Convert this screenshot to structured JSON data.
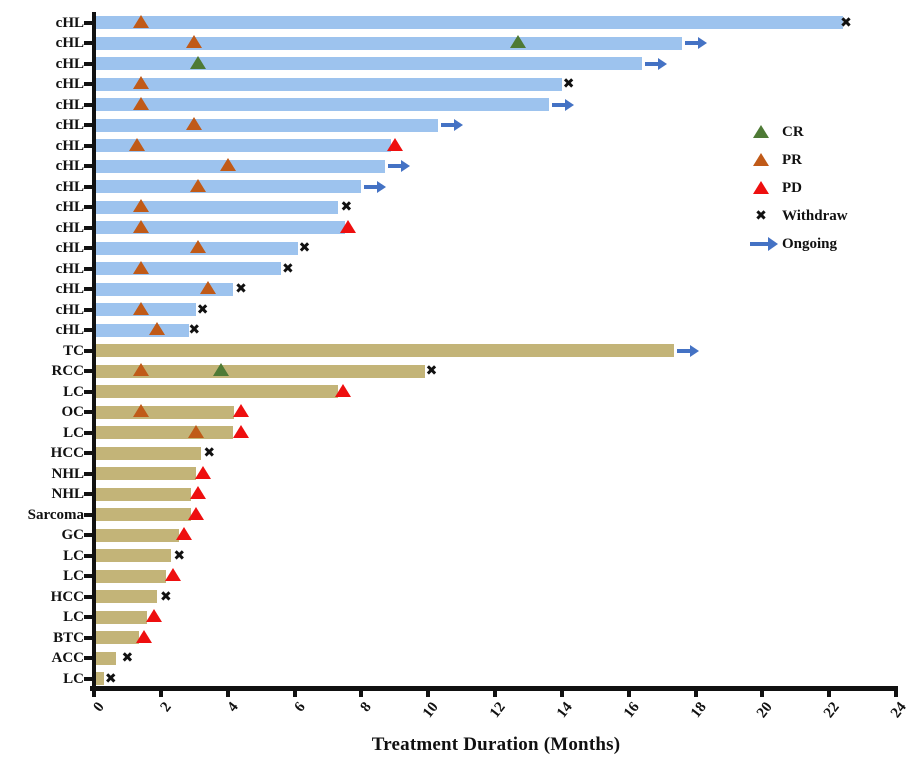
{
  "colors": {
    "chl_bar": "#9dc3ee",
    "other_bar": "#c3b478",
    "cr": "#4e7a35",
    "pr": "#c05a18",
    "pd": "#ee0f0f",
    "withdraw": "#111111",
    "ongoing": "#4472c4",
    "axis": "#111111"
  },
  "chart_data": {
    "type": "bar",
    "subtype": "swimmer-plot",
    "orientation": "horizontal",
    "xlabel": "Treatment Duration (Months)",
    "xlim": [
      0,
      24
    ],
    "xticks": [
      0,
      2,
      4,
      6,
      8,
      10,
      12,
      14,
      16,
      18,
      20,
      22,
      24
    ],
    "grid": false,
    "legend_position": "right-upper",
    "legend": [
      {
        "type": "cr",
        "label": "CR"
      },
      {
        "type": "pr",
        "label": "PR"
      },
      {
        "type": "pd",
        "label": "PD"
      },
      {
        "type": "withdraw",
        "label": "Withdraw"
      },
      {
        "type": "ongoing",
        "label": "Ongoing"
      }
    ],
    "rows": [
      {
        "label": "cHL",
        "group": "cHL",
        "duration": 22.4,
        "ongoing": false,
        "markers": [
          {
            "type": "pr",
            "x": 1.4
          },
          {
            "type": "withdraw",
            "x": 22.5
          }
        ]
      },
      {
        "label": "cHL",
        "group": "cHL",
        "duration": 17.6,
        "ongoing": true,
        "markers": [
          {
            "type": "pr",
            "x": 3.0
          },
          {
            "type": "cr",
            "x": 12.7
          }
        ]
      },
      {
        "label": "cHL",
        "group": "cHL",
        "duration": 16.4,
        "ongoing": true,
        "markers": [
          {
            "type": "cr",
            "x": 3.1
          }
        ]
      },
      {
        "label": "cHL",
        "group": "cHL",
        "duration": 14.0,
        "ongoing": false,
        "markers": [
          {
            "type": "pr",
            "x": 1.4
          },
          {
            "type": "withdraw",
            "x": 14.2
          }
        ]
      },
      {
        "label": "cHL",
        "group": "cHL",
        "duration": 13.6,
        "ongoing": true,
        "markers": [
          {
            "type": "pr",
            "x": 1.4
          }
        ]
      },
      {
        "label": "cHL",
        "group": "cHL",
        "duration": 10.3,
        "ongoing": true,
        "markers": [
          {
            "type": "pr",
            "x": 3.0
          }
        ]
      },
      {
        "label": "cHL",
        "group": "cHL",
        "duration": 8.9,
        "ongoing": false,
        "markers": [
          {
            "type": "pr",
            "x": 1.3
          },
          {
            "type": "pd",
            "x": 9.0
          }
        ]
      },
      {
        "label": "cHL",
        "group": "cHL",
        "duration": 8.7,
        "ongoing": true,
        "markers": [
          {
            "type": "pr",
            "x": 4.0
          }
        ]
      },
      {
        "label": "cHL",
        "group": "cHL",
        "duration": 8.0,
        "ongoing": true,
        "markers": [
          {
            "type": "pr",
            "x": 3.1
          }
        ]
      },
      {
        "label": "cHL",
        "group": "cHL",
        "duration": 7.3,
        "ongoing": false,
        "markers": [
          {
            "type": "pr",
            "x": 1.4
          },
          {
            "type": "withdraw",
            "x": 7.55
          }
        ]
      },
      {
        "label": "cHL",
        "group": "cHL",
        "duration": 7.5,
        "ongoing": false,
        "markers": [
          {
            "type": "pr",
            "x": 1.4
          },
          {
            "type": "pd",
            "x": 7.6
          }
        ]
      },
      {
        "label": "cHL",
        "group": "cHL",
        "duration": 6.1,
        "ongoing": false,
        "markers": [
          {
            "type": "pr",
            "x": 3.1
          },
          {
            "type": "withdraw",
            "x": 6.3
          }
        ]
      },
      {
        "label": "cHL",
        "group": "cHL",
        "duration": 5.6,
        "ongoing": false,
        "markers": [
          {
            "type": "pr",
            "x": 1.4
          },
          {
            "type": "withdraw",
            "x": 5.8
          }
        ]
      },
      {
        "label": "cHL",
        "group": "cHL",
        "duration": 4.15,
        "ongoing": false,
        "markers": [
          {
            "type": "pr",
            "x": 3.4
          },
          {
            "type": "withdraw",
            "x": 4.4
          }
        ]
      },
      {
        "label": "cHL",
        "group": "cHL",
        "duration": 3.05,
        "ongoing": false,
        "markers": [
          {
            "type": "pr",
            "x": 1.4
          },
          {
            "type": "withdraw",
            "x": 3.25
          }
        ]
      },
      {
        "label": "cHL",
        "group": "cHL",
        "duration": 2.85,
        "ongoing": false,
        "markers": [
          {
            "type": "pr",
            "x": 1.9
          },
          {
            "type": "withdraw",
            "x": 3.0
          }
        ]
      },
      {
        "label": "TC",
        "group": "other",
        "duration": 17.35,
        "ongoing": true,
        "markers": []
      },
      {
        "label": "RCC",
        "group": "other",
        "duration": 9.9,
        "ongoing": false,
        "markers": [
          {
            "type": "pr",
            "x": 1.4
          },
          {
            "type": "cr",
            "x": 3.8
          },
          {
            "type": "withdraw",
            "x": 10.1
          }
        ]
      },
      {
        "label": "LC",
        "group": "other",
        "duration": 7.3,
        "ongoing": false,
        "markers": [
          {
            "type": "pd",
            "x": 7.45
          }
        ]
      },
      {
        "label": "OC",
        "group": "other",
        "duration": 4.2,
        "ongoing": false,
        "markers": [
          {
            "type": "pr",
            "x": 1.4
          },
          {
            "type": "pd",
            "x": 4.4
          }
        ]
      },
      {
        "label": "LC",
        "group": "other",
        "duration": 4.15,
        "ongoing": false,
        "markers": [
          {
            "type": "pr",
            "x": 3.05
          },
          {
            "type": "pd",
            "x": 4.4
          }
        ]
      },
      {
        "label": "HCC",
        "group": "other",
        "duration": 3.2,
        "ongoing": false,
        "markers": [
          {
            "type": "withdraw",
            "x": 3.45
          }
        ]
      },
      {
        "label": "NHL",
        "group": "other",
        "duration": 3.05,
        "ongoing": false,
        "markers": [
          {
            "type": "pd",
            "x": 3.25
          }
        ]
      },
      {
        "label": "NHL",
        "group": "other",
        "duration": 2.9,
        "ongoing": false,
        "markers": [
          {
            "type": "pd",
            "x": 3.1
          }
        ]
      },
      {
        "label": "Sarcoma",
        "group": "other",
        "duration": 2.9,
        "ongoing": false,
        "markers": [
          {
            "type": "pd",
            "x": 3.05
          }
        ]
      },
      {
        "label": "GC",
        "group": "other",
        "duration": 2.55,
        "ongoing": false,
        "markers": [
          {
            "type": "pd",
            "x": 2.7
          }
        ]
      },
      {
        "label": "LC",
        "group": "other",
        "duration": 2.3,
        "ongoing": false,
        "markers": [
          {
            "type": "withdraw",
            "x": 2.55
          }
        ]
      },
      {
        "label": "LC",
        "group": "other",
        "duration": 2.15,
        "ongoing": false,
        "markers": [
          {
            "type": "pd",
            "x": 2.35
          }
        ]
      },
      {
        "label": "HCC",
        "group": "other",
        "duration": 1.9,
        "ongoing": false,
        "markers": [
          {
            "type": "withdraw",
            "x": 2.15
          }
        ]
      },
      {
        "label": "LC",
        "group": "other",
        "duration": 1.6,
        "ongoing": false,
        "markers": [
          {
            "type": "pd",
            "x": 1.8
          }
        ]
      },
      {
        "label": "BTC",
        "group": "other",
        "duration": 1.35,
        "ongoing": false,
        "markers": [
          {
            "type": "pd",
            "x": 1.5
          }
        ]
      },
      {
        "label": "ACC",
        "group": "other",
        "duration": 0.65,
        "ongoing": false,
        "markers": [
          {
            "type": "withdraw",
            "x": 1.0
          }
        ]
      },
      {
        "label": "LC",
        "group": "other",
        "duration": 0.3,
        "ongoing": false,
        "markers": [
          {
            "type": "withdraw",
            "x": 0.5
          }
        ]
      }
    ]
  }
}
